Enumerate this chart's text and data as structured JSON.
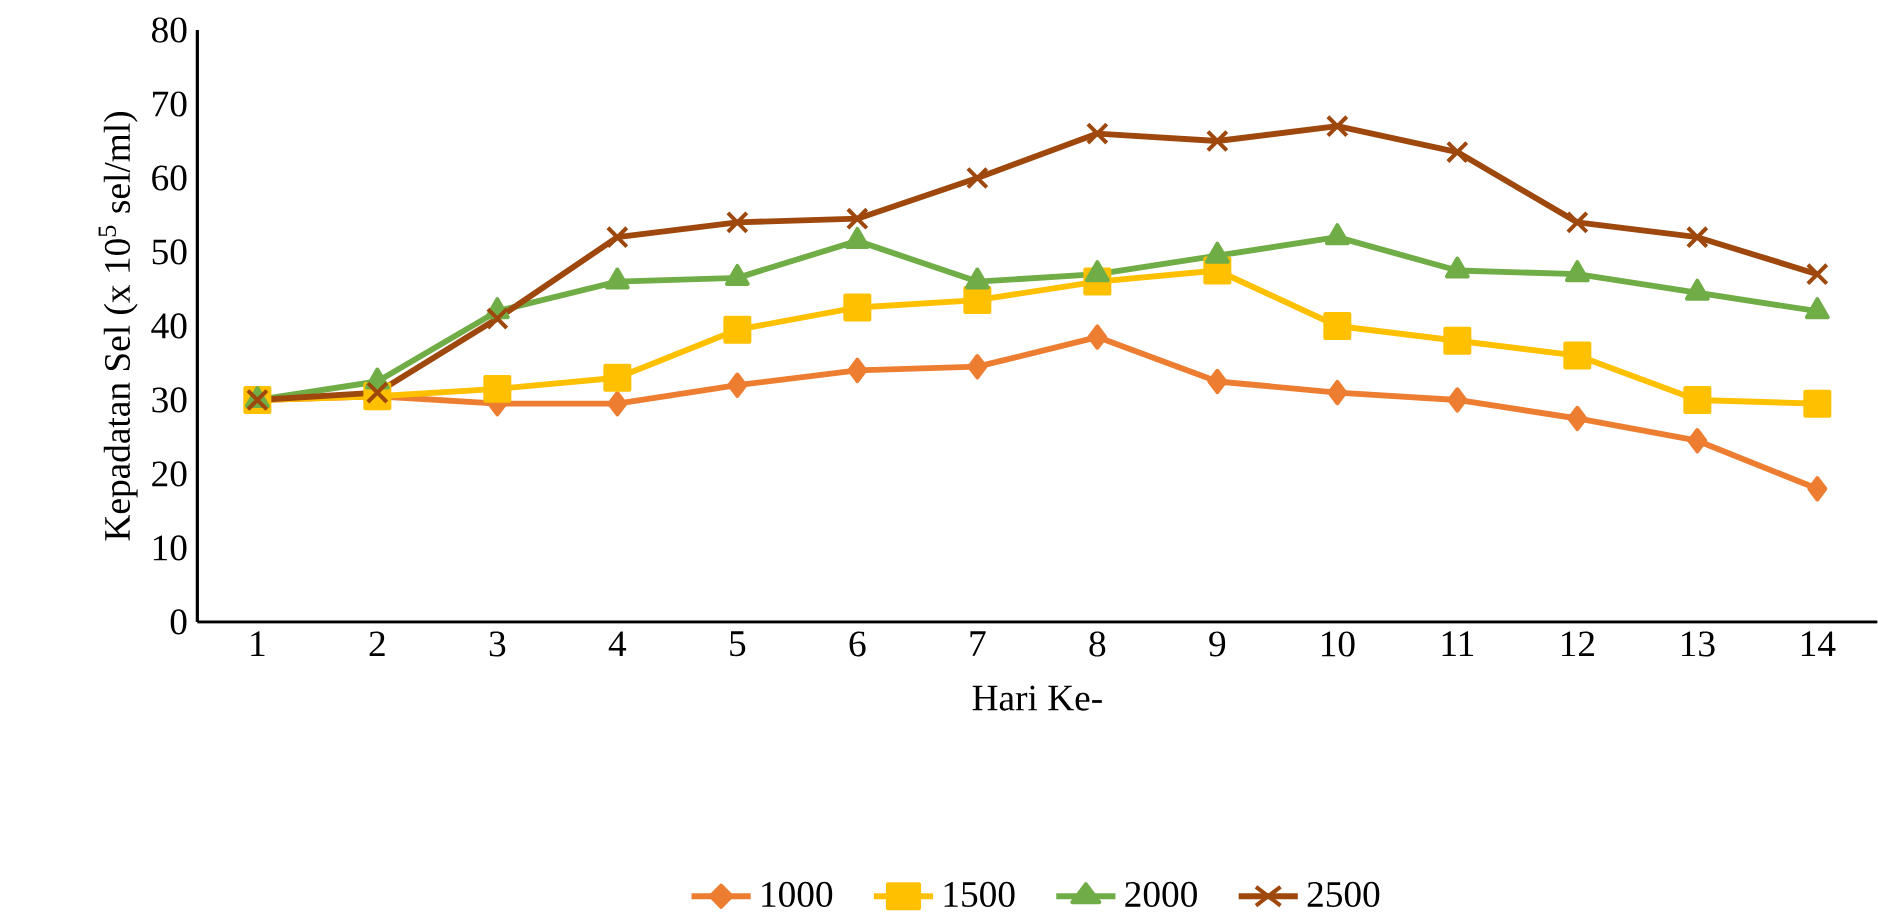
{
  "chart_data": {
    "type": "line",
    "xlabel": "Hari Ke-",
    "ylabel": "Kepadatan Sel (x 10$^{5}$ sel/ml)",
    "categories": [
      "1",
      "2",
      "3",
      "4",
      "5",
      "6",
      "7",
      "8",
      "9",
      "10",
      "11",
      "12",
      "13",
      "14"
    ],
    "ylim": [
      0,
      80
    ],
    "yticks": [
      0,
      10,
      20,
      30,
      40,
      50,
      60,
      70,
      80
    ],
    "grid": false,
    "legend": "bottom",
    "series": [
      {
        "name": "1000",
        "color": "#ed7d31",
        "marker": "diamond",
        "values": [
          30,
          30.5,
          29.5,
          29.5,
          32,
          34,
          34.5,
          38.5,
          32.5,
          31,
          30,
          27.5,
          24.5,
          18
        ]
      },
      {
        "name": "1500",
        "color": "#ffc000",
        "marker": "square",
        "values": [
          30,
          30.5,
          31.5,
          33,
          39.5,
          42.5,
          43.5,
          46,
          47.5,
          40,
          38,
          36,
          30,
          29.5
        ]
      },
      {
        "name": "2000",
        "color": "#70ad47",
        "marker": "triangle",
        "values": [
          30,
          32.5,
          42,
          46,
          46.5,
          51.5,
          46,
          47,
          49.5,
          52,
          47.5,
          47,
          44.5,
          42
        ]
      },
      {
        "name": "2500",
        "color": "#9e480e",
        "marker": "cross",
        "values": [
          30,
          31,
          41,
          52,
          54,
          54.5,
          60,
          66,
          65,
          67,
          63.5,
          54,
          52,
          47
        ]
      }
    ]
  }
}
